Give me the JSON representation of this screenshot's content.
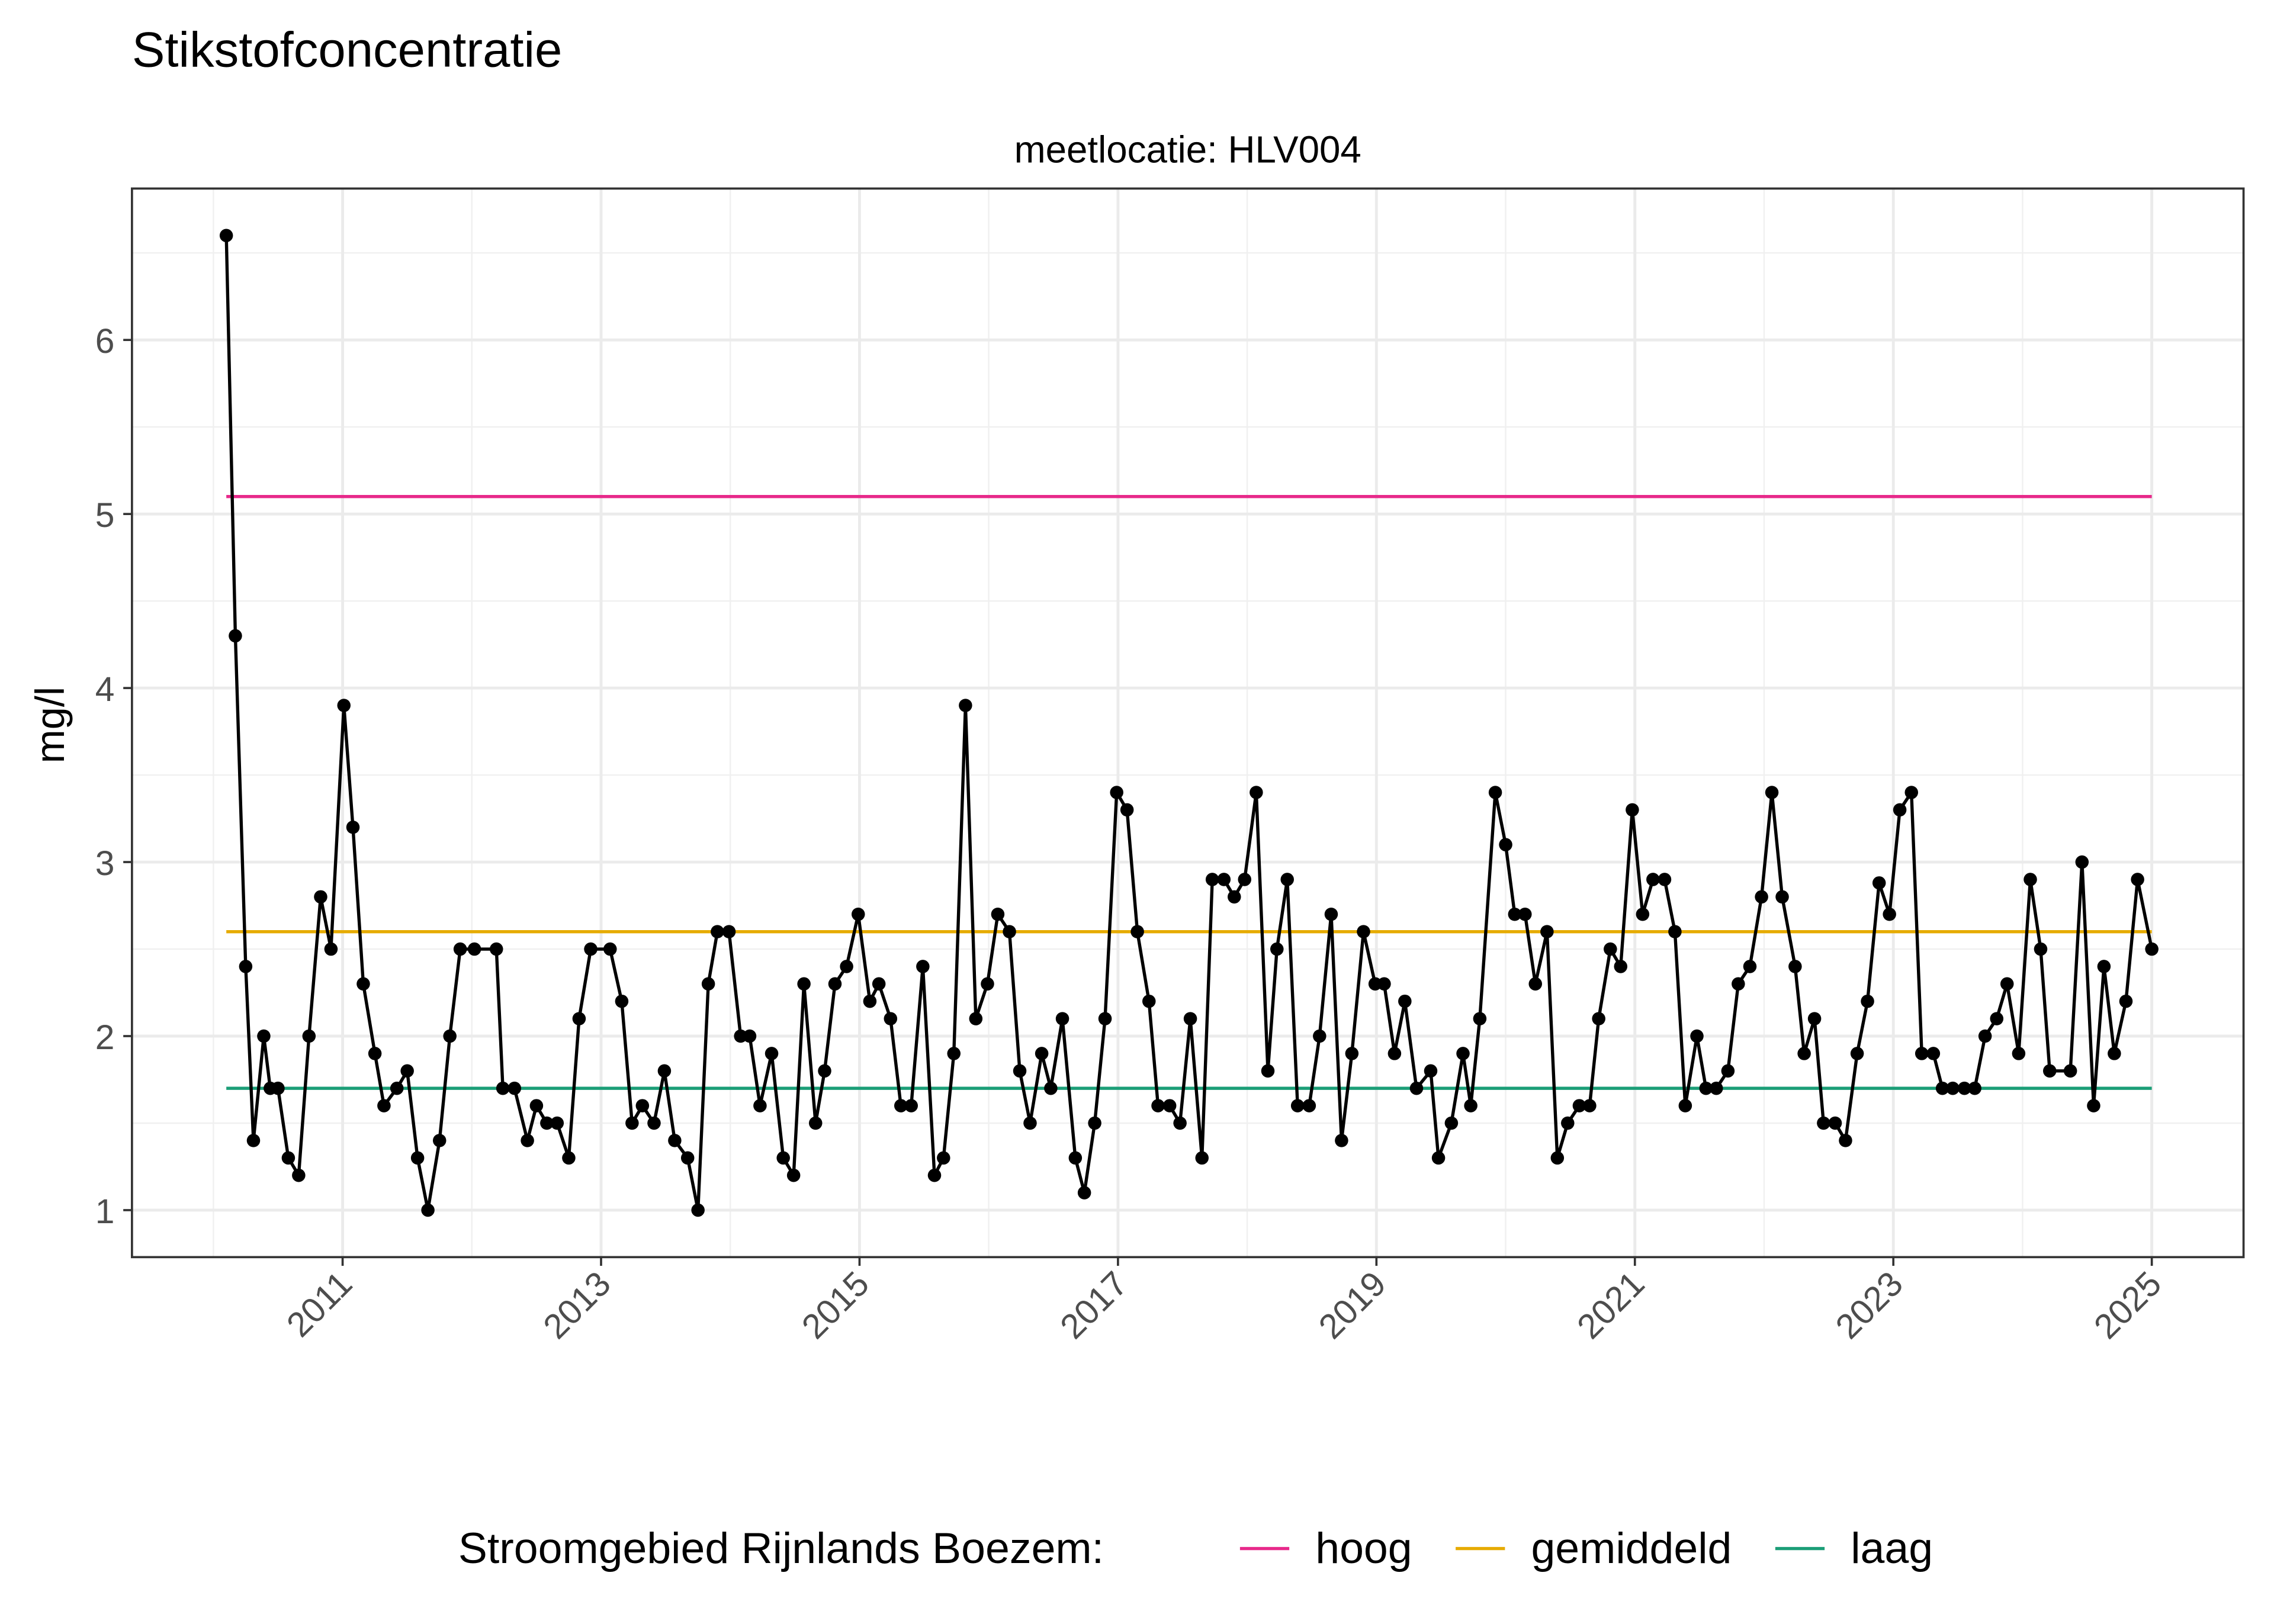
{
  "chart_data": {
    "type": "line",
    "title": "Stikstofconcentratie",
    "subtitle": "meetlocatie: HLV004",
    "y_label": "mg/l",
    "legend_title": "Stroomgebied Rijnlands Boezem:",
    "legend_position": "bottom",
    "grid": true,
    "color": "#000000",
    "xlim": [
      2009.37,
      2025.71
    ],
    "ylim": [
      0.73,
      6.87
    ],
    "xticks": [
      2011,
      2013,
      2015,
      2017,
      2019,
      2021,
      2023,
      2025
    ],
    "xticks_minor": [
      2010,
      2012,
      2014,
      2016,
      2018,
      2020,
      2022,
      2024
    ],
    "yticks": [
      1,
      2,
      3,
      4,
      5,
      6
    ],
    "yticks_minor": [
      1.5,
      2.5,
      3.5,
      4.5,
      5.5,
      6.5
    ],
    "reference_lines": [
      {
        "name": "hoog",
        "color": "#e7298a",
        "value": 5.1
      },
      {
        "name": "gemiddeld",
        "color": "#e6ab02",
        "value": 2.6
      },
      {
        "name": "laag",
        "color": "#1b9e77",
        "value": 1.7
      }
    ],
    "x": [
      2010.1,
      2010.17,
      2010.25,
      2010.31,
      2010.39,
      2010.44,
      2010.5,
      2010.58,
      2010.66,
      2010.74,
      2010.83,
      2010.91,
      2011.01,
      2011.08,
      2011.16,
      2011.25,
      2011.32,
      2011.42,
      2011.5,
      2011.58,
      2011.66,
      2011.75,
      2011.83,
      2011.91,
      2012.02,
      2012.19,
      2012.24,
      2012.33,
      2012.43,
      2012.5,
      2012.58,
      2012.66,
      2012.75,
      2012.83,
      2012.92,
      2013.07,
      2013.16,
      2013.24,
      2013.32,
      2013.41,
      2013.49,
      2013.57,
      2013.67,
      2013.75,
      2013.83,
      2013.9,
      2013.99,
      2014.08,
      2014.15,
      2014.23,
      2014.32,
      2014.41,
      2014.49,
      2014.57,
      2014.66,
      2014.73,
      2014.81,
      2014.9,
      2014.99,
      2015.08,
      2015.15,
      2015.24,
      2015.32,
      2015.4,
      2015.49,
      2015.58,
      2015.65,
      2015.73,
      2015.82,
      2015.9,
      2015.99,
      2016.07,
      2016.16,
      2016.24,
      2016.32,
      2016.41,
      2016.48,
      2016.57,
      2016.67,
      2016.74,
      2016.82,
      2016.9,
      2016.99,
      2017.07,
      2017.15,
      2017.24,
      2017.31,
      2017.4,
      2017.48,
      2017.56,
      2017.65,
      2017.73,
      2017.82,
      2017.9,
      2017.98,
      2018.07,
      2018.16,
      2018.23,
      2018.31,
      2018.39,
      2018.48,
      2018.56,
      2018.65,
      2018.73,
      2018.81,
      2018.9,
      2018.99,
      2019.06,
      2019.14,
      2019.22,
      2019.31,
      2019.42,
      2019.48,
      2019.58,
      2019.67,
      2019.73,
      2019.8,
      2019.92,
      2020.0,
      2020.07,
      2020.15,
      2020.23,
      2020.32,
      2020.4,
      2020.48,
      2020.57,
      2020.65,
      2020.72,
      2020.81,
      2020.89,
      2020.98,
      2021.06,
      2021.14,
      2021.23,
      2021.31,
      2021.39,
      2021.48,
      2021.55,
      2021.63,
      2021.72,
      2021.8,
      2021.89,
      2021.98,
      2022.06,
      2022.14,
      2022.24,
      2022.31,
      2022.39,
      2022.46,
      2022.55,
      2022.63,
      2022.72,
      2022.8,
      2022.89,
      2022.97,
      2023.05,
      2023.14,
      2023.22,
      2023.31,
      2023.38,
      2023.46,
      2023.55,
      2023.63,
      2023.71,
      2023.8,
      2023.88,
      2023.97,
      2024.06,
      2024.14,
      2024.21,
      2024.37,
      2024.46,
      2024.55,
      2024.63,
      2024.71,
      2024.8,
      2024.89,
      2025.0
    ],
    "values": [
      6.6,
      4.3,
      2.4,
      1.4,
      2.0,
      1.7,
      1.7,
      1.3,
      1.2,
      2.0,
      2.8,
      2.5,
      3.9,
      3.2,
      2.3,
      1.9,
      1.6,
      1.7,
      1.8,
      1.3,
      1.0,
      1.4,
      2.0,
      2.5,
      2.5,
      2.5,
      1.7,
      1.7,
      1.4,
      1.6,
      1.5,
      1.5,
      1.3,
      2.1,
      2.5,
      2.5,
      2.2,
      1.5,
      1.6,
      1.5,
      1.8,
      1.4,
      1.3,
      1.0,
      2.3,
      2.6,
      2.6,
      2.0,
      2.0,
      1.6,
      1.9,
      1.3,
      1.2,
      2.3,
      1.5,
      1.8,
      2.3,
      2.4,
      2.7,
      2.2,
      2.3,
      2.1,
      1.6,
      1.6,
      2.4,
      1.2,
      1.3,
      1.9,
      3.9,
      2.1,
      2.3,
      2.7,
      2.6,
      1.8,
      1.5,
      1.9,
      1.7,
      2.1,
      1.3,
      1.1,
      1.5,
      2.1,
      3.4,
      3.3,
      2.6,
      2.2,
      1.6,
      1.6,
      1.5,
      2.1,
      1.3,
      2.9,
      2.9,
      2.8,
      2.9,
      3.4,
      1.8,
      2.5,
      2.9,
      1.6,
      1.6,
      2.0,
      2.7,
      1.4,
      1.9,
      2.6,
      2.3,
      2.3,
      1.9,
      2.2,
      1.7,
      1.8,
      1.3,
      1.5,
      1.9,
      1.6,
      2.1,
      3.4,
      3.1,
      2.7,
      2.7,
      2.3,
      2.6,
      1.3,
      1.5,
      1.6,
      1.6,
      2.1,
      2.5,
      2.4,
      3.3,
      2.7,
      2.9,
      2.9,
      2.6,
      1.6,
      2.0,
      1.7,
      1.7,
      1.8,
      2.3,
      2.4,
      2.8,
      3.4,
      2.8,
      2.4,
      1.9,
      2.1,
      1.5,
      1.5,
      1.4,
      1.9,
      2.2,
      2.88,
      2.7,
      3.3,
      3.4,
      1.9,
      1.9,
      1.7,
      1.7,
      1.7,
      1.7,
      2.0,
      2.1,
      2.3,
      1.9,
      2.9,
      2.5,
      1.8,
      1.8,
      3.0,
      1.6,
      2.4,
      1.9,
      2.2,
      2.9,
      2.5
    ]
  }
}
